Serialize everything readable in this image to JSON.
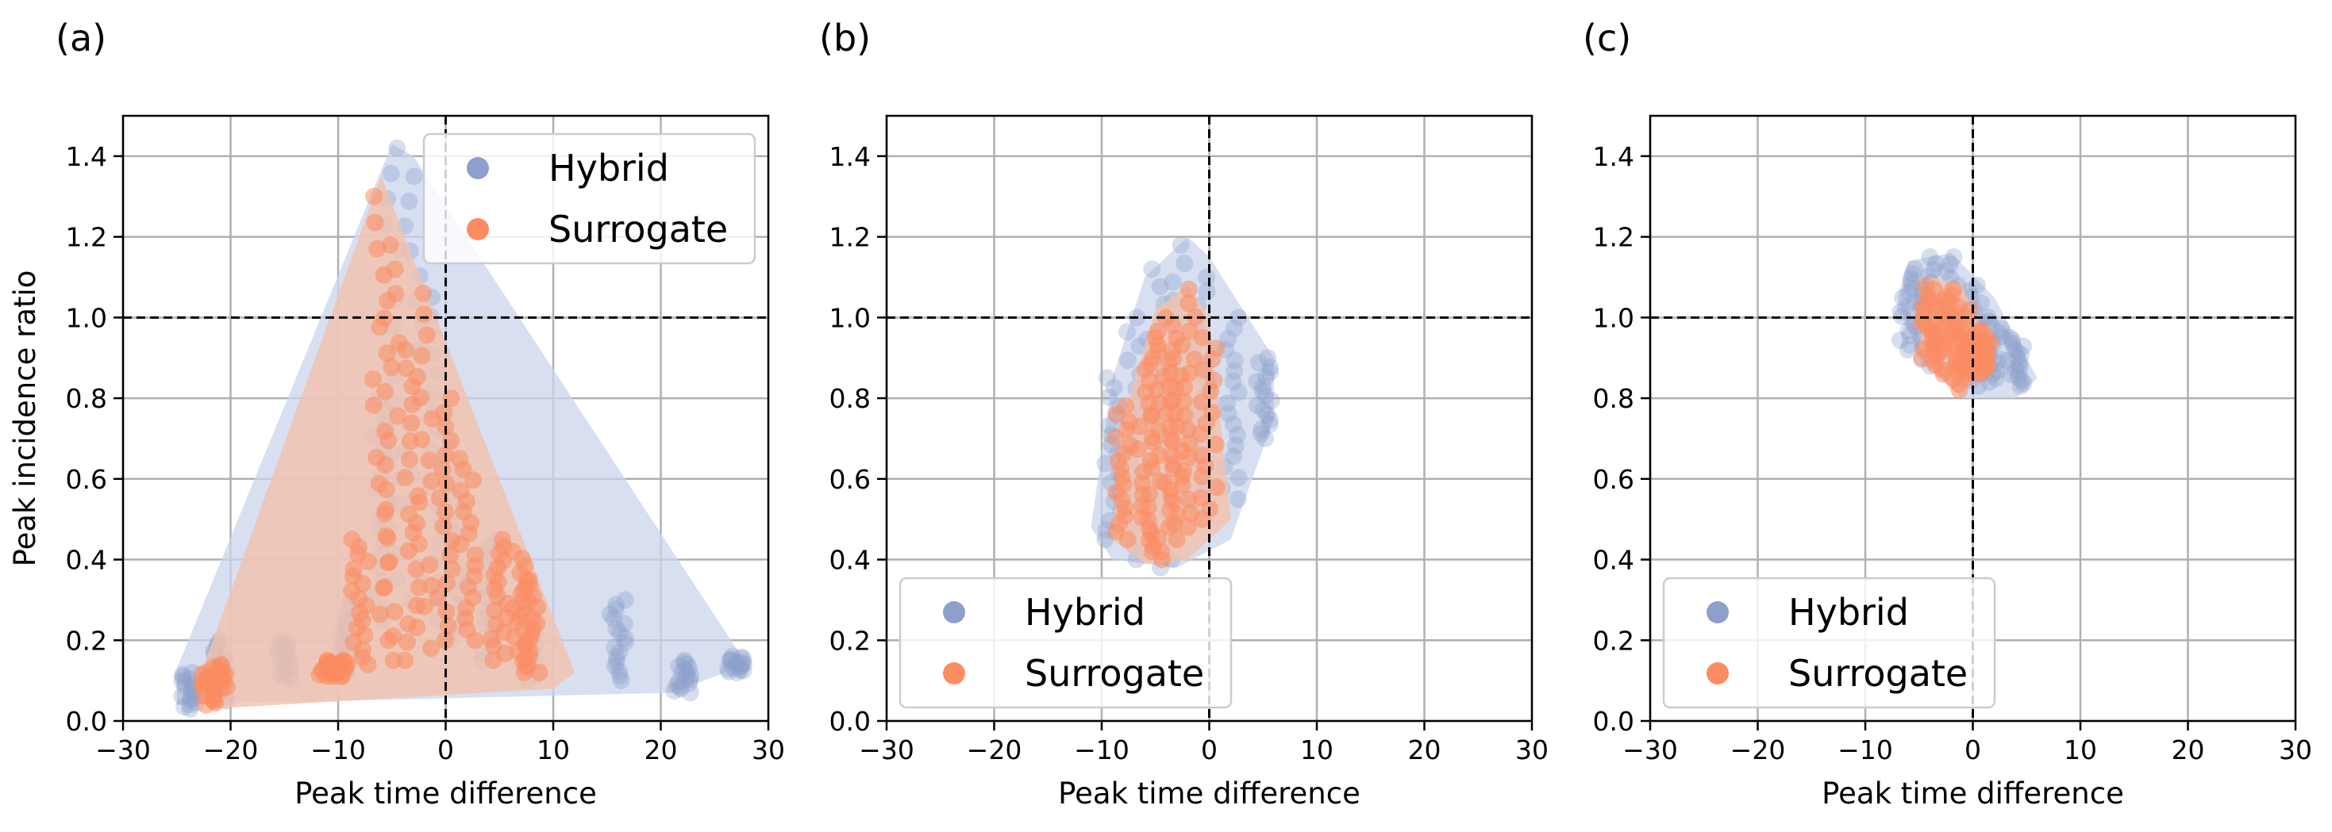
{
  "colors": {
    "hybrid": "#8da0cb",
    "hybrid_hull": "#c9d4ec",
    "surrogate": "#fc8d62",
    "surrogate_hull": "#f2c2ad",
    "grid": "#b0b0b0",
    "refline": "#000000"
  },
  "chart_data": [
    {
      "type": "scatter",
      "panel_label": "(a)",
      "xlabel": "Peak time difference",
      "ylabel": "Peak incidence ratio",
      "xlim": [
        -30,
        30
      ],
      "ylim": [
        0,
        1.5
      ],
      "xticks": [
        -30,
        -20,
        -10,
        0,
        10,
        20,
        30
      ],
      "xtick_labels": [
        "−30",
        "−20",
        "−10",
        "0",
        "10",
        "20",
        "30"
      ],
      "yticks": [
        0.0,
        0.2,
        0.4,
        0.6,
        0.8,
        1.0,
        1.2,
        1.4
      ],
      "ytick_labels": [
        "0.0",
        "0.2",
        "0.4",
        "0.6",
        "0.8",
        "1.0",
        "1.2",
        "1.4"
      ],
      "reference_lines": {
        "x": 0,
        "y": 1.0
      },
      "legend": {
        "position": "upper-right",
        "entries": [
          "Hybrid",
          "Surrogate"
        ]
      },
      "series": [
        {
          "name": "Hybrid",
          "hull": [
            [
              -25,
              0.04
            ],
            [
              -25,
              0.13
            ],
            [
              -5,
              1.43
            ],
            [
              -3,
              1.4
            ],
            [
              28,
              0.14
            ],
            [
              21,
              0.07
            ],
            [
              -25,
              0.04
            ]
          ],
          "clusters": [
            {
              "x": -24,
              "y0": 0.03,
              "y1": 0.12
            },
            {
              "x": -21,
              "y0": 0.05,
              "y1": 0.2
            },
            {
              "x": -15,
              "y0": 0.1,
              "y1": 0.2
            },
            {
              "x": -9,
              "y0": 0.12,
              "y1": 0.3
            },
            {
              "x": -6,
              "y0": 0.25,
              "y1": 0.8
            },
            {
              "x": -5,
              "y0": 0.35,
              "y1": 1.42
            },
            {
              "x": -3,
              "y0": 0.3,
              "y1": 1.35
            },
            {
              "x": -1,
              "y0": 0.25,
              "y1": 1.05
            },
            {
              "x": 1,
              "y0": 0.2,
              "y1": 0.7
            },
            {
              "x": 4,
              "y0": 0.15,
              "y1": 0.45
            },
            {
              "x": 8,
              "y0": 0.1,
              "y1": 0.35
            },
            {
              "x": 16,
              "y0": 0.1,
              "y1": 0.3
            },
            {
              "x": 22,
              "y0": 0.07,
              "y1": 0.15
            },
            {
              "x": 27,
              "y0": 0.12,
              "y1": 0.16
            }
          ]
        },
        {
          "name": "Surrogate",
          "hull": [
            [
              -22,
              0.03
            ],
            [
              -23,
              0.1
            ],
            [
              -6,
              1.35
            ],
            [
              12,
              0.12
            ],
            [
              10,
              0.08
            ],
            [
              -22,
              0.03
            ]
          ],
          "clusters": [
            {
              "x": -22,
              "y0": 0.04,
              "y1": 0.12
            },
            {
              "x": -21,
              "y0": 0.08,
              "y1": 0.14
            },
            {
              "x": -11,
              "y0": 0.11,
              "y1": 0.15
            },
            {
              "x": -10,
              "y0": 0.11,
              "y1": 0.15
            },
            {
              "x": -8,
              "y0": 0.14,
              "y1": 0.45
            },
            {
              "x": -6,
              "y0": 0.2,
              "y1": 1.3
            },
            {
              "x": -5,
              "y0": 0.15,
              "y1": 1.18
            },
            {
              "x": -3,
              "y0": 0.15,
              "y1": 0.92
            },
            {
              "x": -2,
              "y0": 0.18,
              "y1": 1.06
            },
            {
              "x": 0,
              "y0": 0.2,
              "y1": 0.8
            },
            {
              "x": 2,
              "y0": 0.2,
              "y1": 0.65
            },
            {
              "x": 5,
              "y0": 0.15,
              "y1": 0.45
            },
            {
              "x": 7,
              "y0": 0.12,
              "y1": 0.42
            },
            {
              "x": 8,
              "y0": 0.12,
              "y1": 0.35
            }
          ]
        }
      ]
    },
    {
      "type": "scatter",
      "panel_label": "(b)",
      "xlabel": "Peak time difference",
      "ylabel": "",
      "xlim": [
        -30,
        30
      ],
      "ylim": [
        0,
        1.5
      ],
      "xticks": [
        -30,
        -20,
        -10,
        0,
        10,
        20,
        30
      ],
      "xtick_labels": [
        "−30",
        "−20",
        "−10",
        "0",
        "10",
        "20",
        "30"
      ],
      "yticks": [
        0.0,
        0.2,
        0.4,
        0.6,
        0.8,
        1.0,
        1.2,
        1.4
      ],
      "ytick_labels": [
        "0.0",
        "0.2",
        "0.4",
        "0.6",
        "0.8",
        "1.0",
        "1.2",
        "1.4"
      ],
      "reference_lines": {
        "x": 0,
        "y": 1.0
      },
      "legend": {
        "position": "lower-left",
        "entries": [
          "Hybrid",
          "Surrogate"
        ]
      },
      "series": [
        {
          "name": "Hybrid",
          "hull": [
            [
              -11,
              0.48
            ],
            [
              -9,
              0.85
            ],
            [
              -6,
              1.1
            ],
            [
              -2,
              1.2
            ],
            [
              0,
              1.15
            ],
            [
              6,
              0.9
            ],
            [
              6,
              0.75
            ],
            [
              2,
              0.45
            ],
            [
              -3,
              0.38
            ],
            [
              -9,
              0.4
            ],
            [
              -11,
              0.48
            ]
          ],
          "clusters": [
            {
              "x": -9,
              "y0": 0.45,
              "y1": 0.85
            },
            {
              "x": -7,
              "y0": 0.4,
              "y1": 1.0
            },
            {
              "x": -5,
              "y0": 0.38,
              "y1": 1.12
            },
            {
              "x": -3,
              "y0": 0.4,
              "y1": 1.18
            },
            {
              "x": -1,
              "y0": 0.5,
              "y1": 1.1
            },
            {
              "x": 2,
              "y0": 0.55,
              "y1": 1.0
            },
            {
              "x": 5,
              "y0": 0.7,
              "y1": 0.9
            }
          ]
        },
        {
          "name": "Surrogate",
          "hull": [
            [
              -9,
              0.45
            ],
            [
              -8,
              0.75
            ],
            [
              -5,
              1.02
            ],
            [
              -2,
              1.08
            ],
            [
              0,
              1.0
            ],
            [
              2,
              0.5
            ],
            [
              -2,
              0.4
            ],
            [
              -6,
              0.39
            ],
            [
              -9,
              0.45
            ]
          ],
          "clusters": [
            {
              "x": -8,
              "y0": 0.45,
              "y1": 0.78
            },
            {
              "x": -6,
              "y0": 0.42,
              "y1": 0.9
            },
            {
              "x": -5,
              "y0": 0.4,
              "y1": 0.95
            },
            {
              "x": -4,
              "y0": 0.42,
              "y1": 1.0
            },
            {
              "x": -3,
              "y0": 0.45,
              "y1": 0.98
            },
            {
              "x": -2,
              "y0": 0.48,
              "y1": 1.07
            },
            {
              "x": 0,
              "y0": 0.5,
              "y1": 0.95
            }
          ]
        }
      ]
    },
    {
      "type": "scatter",
      "panel_label": "(c)",
      "xlabel": "Peak time difference",
      "ylabel": "",
      "xlim": [
        -30,
        30
      ],
      "ylim": [
        0,
        1.5
      ],
      "xticks": [
        -30,
        -20,
        -10,
        0,
        10,
        20,
        30
      ],
      "xtick_labels": [
        "−30",
        "−20",
        "−10",
        "0",
        "10",
        "20",
        "30"
      ],
      "yticks": [
        0.0,
        0.2,
        0.4,
        0.6,
        0.8,
        1.0,
        1.2,
        1.4
      ],
      "ytick_labels": [
        "0.0",
        "0.2",
        "0.4",
        "0.6",
        "0.8",
        "1.0",
        "1.2",
        "1.4"
      ],
      "reference_lines": {
        "x": 0,
        "y": 1.0
      },
      "legend": {
        "position": "lower-left",
        "entries": [
          "Hybrid",
          "Surrogate"
        ]
      },
      "series": [
        {
          "name": "Hybrid",
          "hull": [
            [
              -7,
              1.05
            ],
            [
              -6,
              1.14
            ],
            [
              -2,
              1.16
            ],
            [
              2,
              1.05
            ],
            [
              6,
              0.85
            ],
            [
              4,
              0.8
            ],
            [
              -1,
              0.8
            ],
            [
              -5,
              0.9
            ],
            [
              -7,
              1.05
            ]
          ],
          "clusters": [
            {
              "x": -6,
              "y0": 0.92,
              "y1": 1.12
            },
            {
              "x": -4,
              "y0": 0.88,
              "y1": 1.15
            },
            {
              "x": -2,
              "y0": 0.85,
              "y1": 1.15
            },
            {
              "x": 0,
              "y0": 0.83,
              "y1": 1.08
            },
            {
              "x": 2,
              "y0": 0.84,
              "y1": 1.0
            },
            {
              "x": 4,
              "y0": 0.83,
              "y1": 0.95
            }
          ]
        },
        {
          "name": "Surrogate",
          "hull": [
            [
              -5,
              0.92
            ],
            [
              -4,
              1.1
            ],
            [
              -1,
              1.08
            ],
            [
              1,
              0.95
            ],
            [
              0,
              0.85
            ],
            [
              -2,
              0.82
            ],
            [
              -5,
              0.92
            ]
          ],
          "clusters": [
            {
              "x": -4,
              "y0": 0.9,
              "y1": 1.08
            },
            {
              "x": -3,
              "y0": 0.86,
              "y1": 1.05
            },
            {
              "x": -2,
              "y0": 0.82,
              "y1": 1.07
            },
            {
              "x": -1,
              "y0": 0.85,
              "y1": 1.02
            },
            {
              "x": 0,
              "y0": 0.86,
              "y1": 0.95
            },
            {
              "x": 1,
              "y0": 0.87,
              "y1": 0.97
            }
          ]
        }
      ]
    }
  ]
}
